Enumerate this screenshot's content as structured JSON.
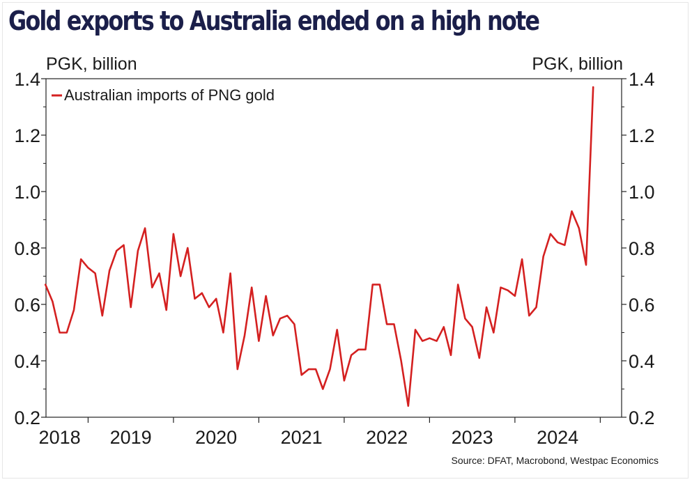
{
  "chart_data": {
    "type": "line",
    "title": "Gold exports to Australia ended on a high note",
    "ylabel_left": "PGK, billion",
    "ylabel_right": "PGK, billion",
    "ylim": [
      0.2,
      1.4
    ],
    "yticks": [
      "0.2",
      "0.4",
      "0.6",
      "0.8",
      "1.0",
      "1.2",
      "1.4"
    ],
    "ytick_values": [
      0.2,
      0.4,
      0.6,
      0.8,
      1.0,
      1.2,
      1.4
    ],
    "xlim_months": [
      0,
      81
    ],
    "year_labels": [
      "2018",
      "2019",
      "2020",
      "2021",
      "2022",
      "2023",
      "2024"
    ],
    "year_label_months": [
      2,
      12,
      24,
      36,
      48,
      60,
      72
    ],
    "year_boundary_months": [
      6,
      18,
      30,
      42,
      54,
      66,
      78
    ],
    "legend": "Australian imports of PNG gold",
    "source": "Source: DFAT, Macrobond, Westpac Economics",
    "series": [
      {
        "name": "Australian imports of PNG gold",
        "color": "#d42020",
        "start": "2017-12",
        "values": [
          0.67,
          0.61,
          0.5,
          0.5,
          0.58,
          0.76,
          0.73,
          0.71,
          0.56,
          0.72,
          0.79,
          0.81,
          0.59,
          0.79,
          0.87,
          0.66,
          0.71,
          0.58,
          0.85,
          0.7,
          0.8,
          0.62,
          0.64,
          0.59,
          0.62,
          0.5,
          0.71,
          0.37,
          0.49,
          0.66,
          0.47,
          0.63,
          0.49,
          0.55,
          0.56,
          0.53,
          0.35,
          0.37,
          0.37,
          0.3,
          0.37,
          0.51,
          0.33,
          0.42,
          0.44,
          0.44,
          0.67,
          0.67,
          0.53,
          0.53,
          0.4,
          0.24,
          0.51,
          0.47,
          0.48,
          0.47,
          0.52,
          0.42,
          0.67,
          0.55,
          0.52,
          0.41,
          0.59,
          0.5,
          0.66,
          0.65,
          0.63,
          0.76,
          0.56,
          0.59,
          0.77,
          0.85,
          0.82,
          0.81,
          0.93,
          0.87,
          0.74,
          1.37
        ]
      }
    ]
  }
}
